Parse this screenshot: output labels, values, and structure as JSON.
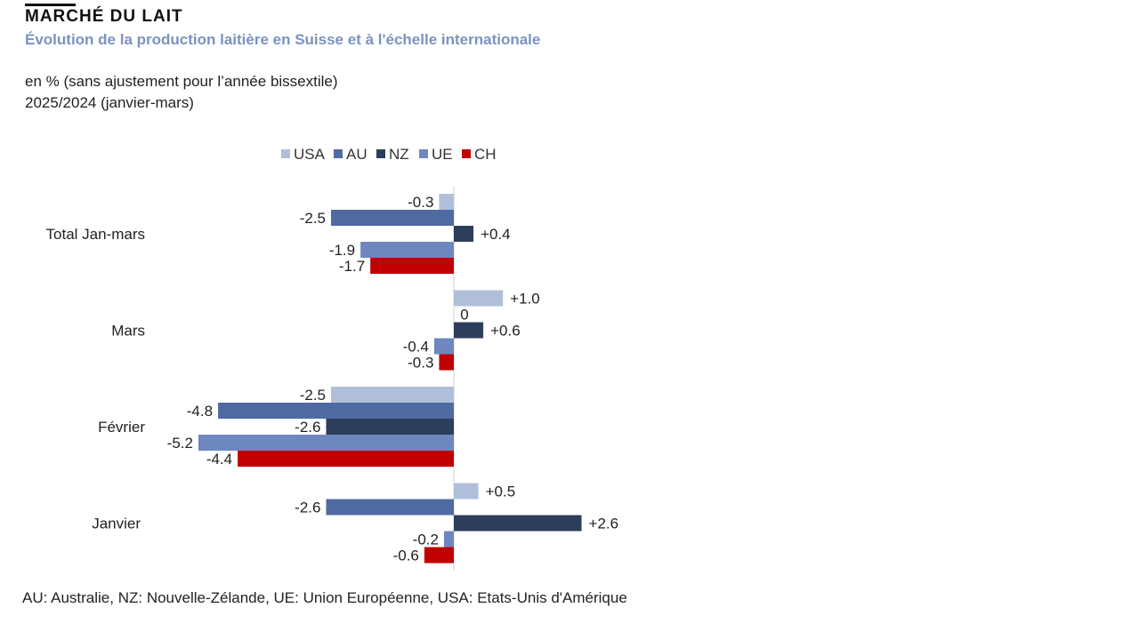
{
  "header": {
    "kicker": "MARCHÉ DU LAIT",
    "title": "Évolution de la production laitière en Suisse et à l'échelle internationale",
    "unit": "en % (sans ajustement pour l’année bissextile)",
    "period": "2025/2024 (janvier-mars)"
  },
  "chart_data": {
    "type": "bar",
    "orientation": "horizontal",
    "categories": [
      "Total Jan-mars",
      "Mars",
      "Février",
      "Janvier"
    ],
    "series": [
      {
        "name": "USA",
        "color": "#b0bfd9",
        "values": [
          -0.3,
          1.0,
          -2.5,
          0.5
        ],
        "labels": [
          "-0.3",
          "+1.0",
          "-2.5",
          "+0.5"
        ]
      },
      {
        "name": "AU",
        "color": "#4e6aa1",
        "values": [
          -2.5,
          0,
          -4.8,
          -2.6
        ],
        "labels": [
          "-2.5",
          "0",
          "-4.8",
          "-2.6"
        ]
      },
      {
        "name": "NZ",
        "color": "#2d3e5c",
        "values": [
          0.4,
          0.6,
          -2.6,
          2.6
        ],
        "labels": [
          "+0.4",
          "+0.6",
          "-2.6",
          "+2.6"
        ]
      },
      {
        "name": "UE",
        "color": "#6f87bf",
        "values": [
          -1.9,
          -0.4,
          -5.2,
          -0.2
        ],
        "labels": [
          "-1.9",
          "-0.4",
          "-5.2",
          "-0.2"
        ]
      },
      {
        "name": "CH",
        "color": "#c00000",
        "values": [
          -1.7,
          -0.3,
          -4.4,
          -0.6
        ],
        "labels": [
          "-1.7",
          "-0.3",
          "-4.4",
          "-0.6"
        ]
      }
    ],
    "legend_position": "top",
    "grid": false
  },
  "footnote": "AU: Australie, NZ: Nouvelle-Zélande, UE: Union Européenne, USA: Etats-Unis d'Amérique"
}
